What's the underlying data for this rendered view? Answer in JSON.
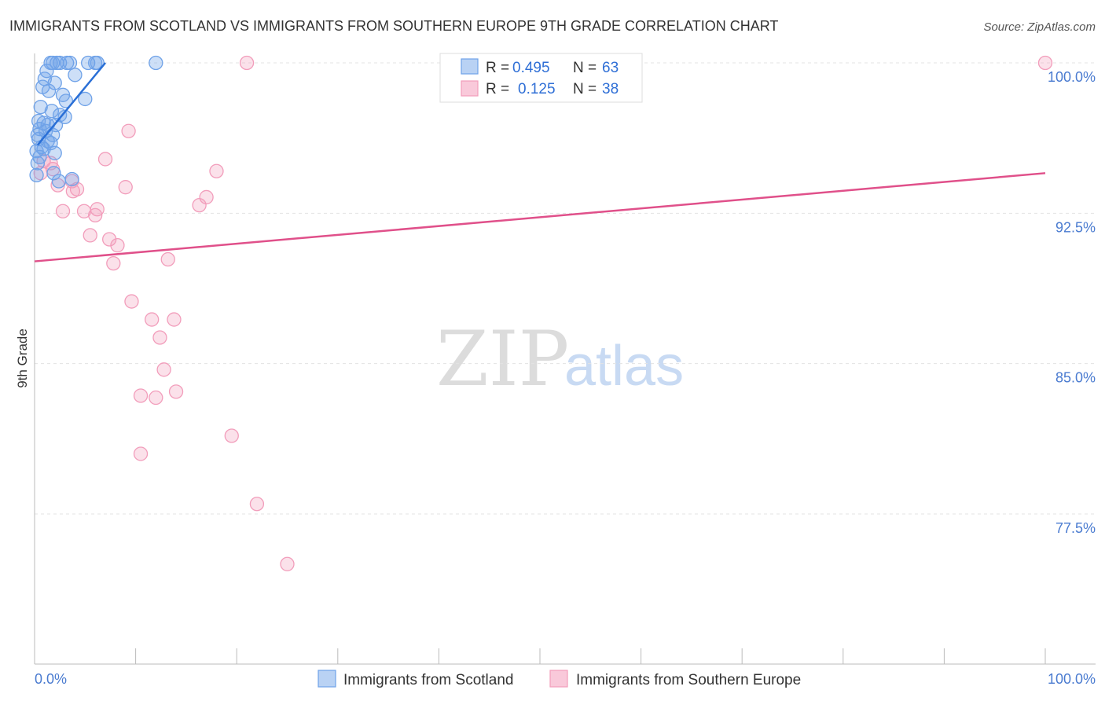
{
  "chart_data": {
    "type": "scatter",
    "title": "IMMIGRANTS FROM SCOTLAND VS IMMIGRANTS FROM SOUTHERN EUROPE 9TH GRADE CORRELATION CHART",
    "source": "Source: ZipAtlas.com",
    "ylabel": "9th Grade",
    "xlim": [
      0,
      100
    ],
    "ylim": [
      70.0,
      101.0
    ],
    "y_ticks": [
      {
        "value": 100.0,
        "label": "100.0%"
      },
      {
        "value": 92.5,
        "label": "92.5%"
      },
      {
        "value": 85.0,
        "label": "85.0%"
      },
      {
        "value": 77.5,
        "label": "77.5%"
      }
    ],
    "x_tick_labels": {
      "left": "0.0%",
      "right": "100.0%"
    },
    "watermark": {
      "zip": "ZIP",
      "atlas": "atlas"
    },
    "legend": {
      "r_label": "R =",
      "n_label": "N =",
      "entries": [
        {
          "r": "0.495",
          "n": "63"
        },
        {
          "r": "0.125",
          "n": "38"
        }
      ]
    },
    "series": [
      {
        "name": "Immigrants from Scotland",
        "color": "#6fa2e8",
        "line_color": "#2a6fd6",
        "trend": {
          "x": [
            0.3,
            7.0
          ],
          "y": [
            95.9,
            100.0
          ]
        },
        "points": [
          [
            1.6,
            100.0
          ],
          [
            1.8,
            100.0
          ],
          [
            2.2,
            100.0
          ],
          [
            2.5,
            100.0
          ],
          [
            3.2,
            100.0
          ],
          [
            3.5,
            100.0
          ],
          [
            5.3,
            100.0
          ],
          [
            6.0,
            100.0
          ],
          [
            6.2,
            100.0
          ],
          [
            12.0,
            100.0
          ],
          [
            1.2,
            99.6
          ],
          [
            4.0,
            99.4
          ],
          [
            1.0,
            99.2
          ],
          [
            2.0,
            99.0
          ],
          [
            0.8,
            98.8
          ],
          [
            1.4,
            98.6
          ],
          [
            2.8,
            98.4
          ],
          [
            3.1,
            98.1
          ],
          [
            5.0,
            98.2
          ],
          [
            0.6,
            97.8
          ],
          [
            1.7,
            97.6
          ],
          [
            2.5,
            97.4
          ],
          [
            3.0,
            97.3
          ],
          [
            0.4,
            97.1
          ],
          [
            0.9,
            97.0
          ],
          [
            1.3,
            96.9
          ],
          [
            2.1,
            96.9
          ],
          [
            0.5,
            96.7
          ],
          [
            1.1,
            96.6
          ],
          [
            0.3,
            96.4
          ],
          [
            1.8,
            96.4
          ],
          [
            0.4,
            96.2
          ],
          [
            1.3,
            96.1
          ],
          [
            1.6,
            96.0
          ],
          [
            0.7,
            95.8
          ],
          [
            0.9,
            95.7
          ],
          [
            0.2,
            95.6
          ],
          [
            2.0,
            95.5
          ],
          [
            0.5,
            95.3
          ],
          [
            1.9,
            94.5
          ],
          [
            0.2,
            94.4
          ],
          [
            2.4,
            94.1
          ],
          [
            3.7,
            94.2
          ],
          [
            0.3,
            95.0
          ]
        ]
      },
      {
        "name": "Immigrants from Southern Europe",
        "color": "#f29dbb",
        "line_color": "#e0508a",
        "trend": {
          "x": [
            0,
            100
          ],
          "y": [
            90.1,
            94.5
          ]
        },
        "points": [
          [
            21.0,
            100.0
          ],
          [
            100.0,
            100.0
          ],
          [
            9.3,
            96.6
          ],
          [
            7.0,
            95.2
          ],
          [
            0.9,
            95.1
          ],
          [
            1.6,
            95.0
          ],
          [
            1.8,
            94.7
          ],
          [
            18.0,
            94.6
          ],
          [
            0.6,
            94.5
          ],
          [
            3.7,
            94.1
          ],
          [
            2.3,
            93.9
          ],
          [
            4.2,
            93.7
          ],
          [
            3.8,
            93.6
          ],
          [
            9.0,
            93.8
          ],
          [
            17.0,
            93.3
          ],
          [
            16.3,
            92.9
          ],
          [
            6.2,
            92.7
          ],
          [
            4.9,
            92.6
          ],
          [
            6.0,
            92.4
          ],
          [
            2.8,
            92.6
          ],
          [
            5.5,
            91.4
          ],
          [
            7.4,
            91.2
          ],
          [
            8.2,
            90.9
          ],
          [
            13.2,
            90.2
          ],
          [
            7.8,
            90.0
          ],
          [
            9.6,
            88.1
          ],
          [
            11.6,
            87.2
          ],
          [
            13.8,
            87.2
          ],
          [
            12.4,
            86.3
          ],
          [
            12.8,
            84.7
          ],
          [
            10.5,
            83.4
          ],
          [
            12.0,
            83.3
          ],
          [
            14.0,
            83.6
          ],
          [
            19.5,
            81.4
          ],
          [
            10.5,
            80.5
          ],
          [
            22.0,
            78.0
          ],
          [
            25.0,
            75.0
          ]
        ]
      }
    ]
  }
}
